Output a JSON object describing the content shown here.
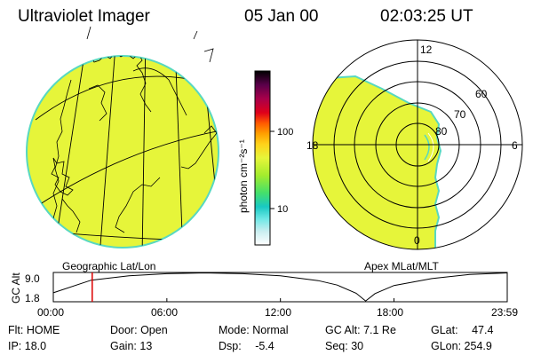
{
  "header": {
    "title": "Ultraviolet Imager",
    "date": "05 Jan 00",
    "time": "02:03:25 UT"
  },
  "colors": {
    "image_fill": "#e6f53a",
    "image_edge": "#58d8c0",
    "map_lines": "#000000",
    "time_marker": "#dd0000"
  },
  "colorbar": {
    "label": "photon cm⁻²s⁻¹",
    "ticks": [
      "100",
      "10"
    ],
    "scale": "log",
    "colors_bottom_to_top": [
      "#ffffff",
      "#c8eef0",
      "#6fe8e6",
      "#18c9c3",
      "#45e06a",
      "#a3ec2d",
      "#e6f53a",
      "#ffd21a",
      "#ff9f00",
      "#ff5a00",
      "#e0001a",
      "#a8004a",
      "#5a004a",
      "#000000"
    ]
  },
  "panels": {
    "geo_label": "Geographic Lat/Lon",
    "polar_label": "Apex MLat/MLT",
    "polar_mlt_labels": [
      "12",
      "18",
      "6",
      "0"
    ],
    "polar_lat_labels": [
      "60",
      "70",
      "80"
    ]
  },
  "chart_data": {
    "type": "line",
    "title": "",
    "ylabel": "GC Alt",
    "y_ticks": [
      "9.0",
      "1.8"
    ],
    "x_ticks": [
      "00:00",
      "06:00",
      "12:00",
      "18:00",
      "23:59"
    ],
    "xlim": [
      "00:00",
      "23:59"
    ],
    "ylim": [
      1.8,
      9.0
    ],
    "marker_time": "02:03:25",
    "series": [
      {
        "x": [
          "00:00",
          "02:00",
          "04:00",
          "06:00",
          "08:00",
          "10:00",
          "12:00",
          "14:00",
          "15:00",
          "16:00",
          "16:30",
          "17:00",
          "18:00",
          "20:00",
          "22:00",
          "23:59"
        ],
        "values": [
          4.0,
          7.1,
          8.2,
          8.7,
          8.9,
          8.7,
          8.2,
          7.0,
          5.9,
          3.9,
          2.0,
          3.8,
          5.8,
          7.5,
          8.5,
          8.9
        ]
      }
    ]
  },
  "info": {
    "filter_label": "Flt:",
    "filter_value": "HOME",
    "door_label": "Door:",
    "door_value": "Open",
    "mode_label": "Mode:",
    "mode_value": "Normal",
    "gcalt_label": "GC Alt:",
    "gcalt_value": "7.1 Re",
    "glat_label": "GLat:",
    "glat_value": "47.4",
    "ip_label": "IP:",
    "ip_value": "18.0",
    "gain_label": "Gain:",
    "gain_value": "13",
    "dsp_label": "Dsp:",
    "dsp_value": "-5.4",
    "seq_label": "Seq:",
    "seq_value": "30",
    "glon_label": "GLon:",
    "glon_value": "254.9"
  }
}
